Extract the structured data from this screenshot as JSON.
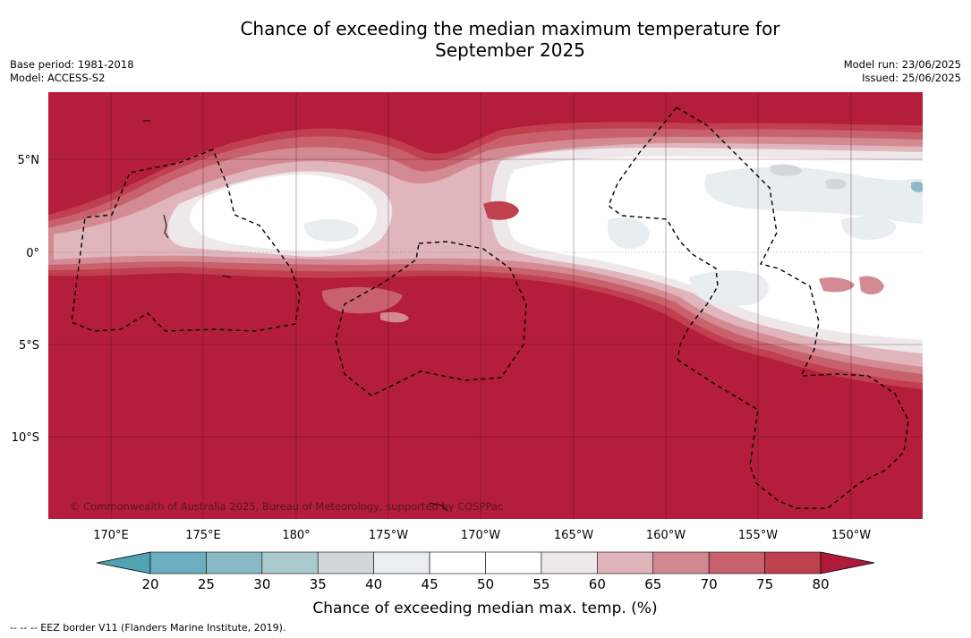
{
  "title_line1": "Chance of exceeding the median maximum temperature for",
  "title_line2": "September 2025",
  "base_period": "Base period: 1981-2018",
  "model": "Model: ACCESS-S2",
  "model_run": "Model run: 23/06/2025",
  "issued": "Issued: 25/06/2025",
  "lat_labels": [
    "5°N",
    "0°",
    "5°S",
    "10°S"
  ],
  "lon_labels": [
    "170°E",
    "175°E",
    "180°",
    "175°W",
    "170°W",
    "165°W",
    "160°W",
    "155°W",
    "150°W"
  ],
  "copyright": "© Commonwealth of Australia 2025, Bureau of Meteorology, supported by COSPPac",
  "colorbar": {
    "title": "Chance of exceeding median max. temp. (%)",
    "ticks": [
      "20",
      "25",
      "30",
      "35",
      "40",
      "45",
      "50",
      "55",
      "60",
      "65",
      "70",
      "75",
      "80"
    ],
    "colors": [
      "#6aaebf",
      "#8ab9c6",
      "#a9c9cd",
      "#d1d6d8",
      "#e9eef1",
      "#ffffff",
      "#ffffff",
      "#ede8ea",
      "#dfb5bb",
      "#d38890",
      "#c8606d",
      "#bf404f"
    ],
    "under_color": "#4fa3b3",
    "over_color": "#b01a39"
  },
  "map_colors": {
    "c80": "#b41e3b",
    "c75": "#c0404f",
    "c70": "#c9616d",
    "c65": "#d48a92",
    "c60": "#e0b6bc",
    "c55": "#eee8ea",
    "c50": "#ffffff",
    "c40": "#e8edf0",
    "c35": "#d2d7da",
    "c25": "#8fb9c6"
  },
  "footer": "--  --  -- EEZ border V11 (Flanders Marine Institute, 2019)."
}
